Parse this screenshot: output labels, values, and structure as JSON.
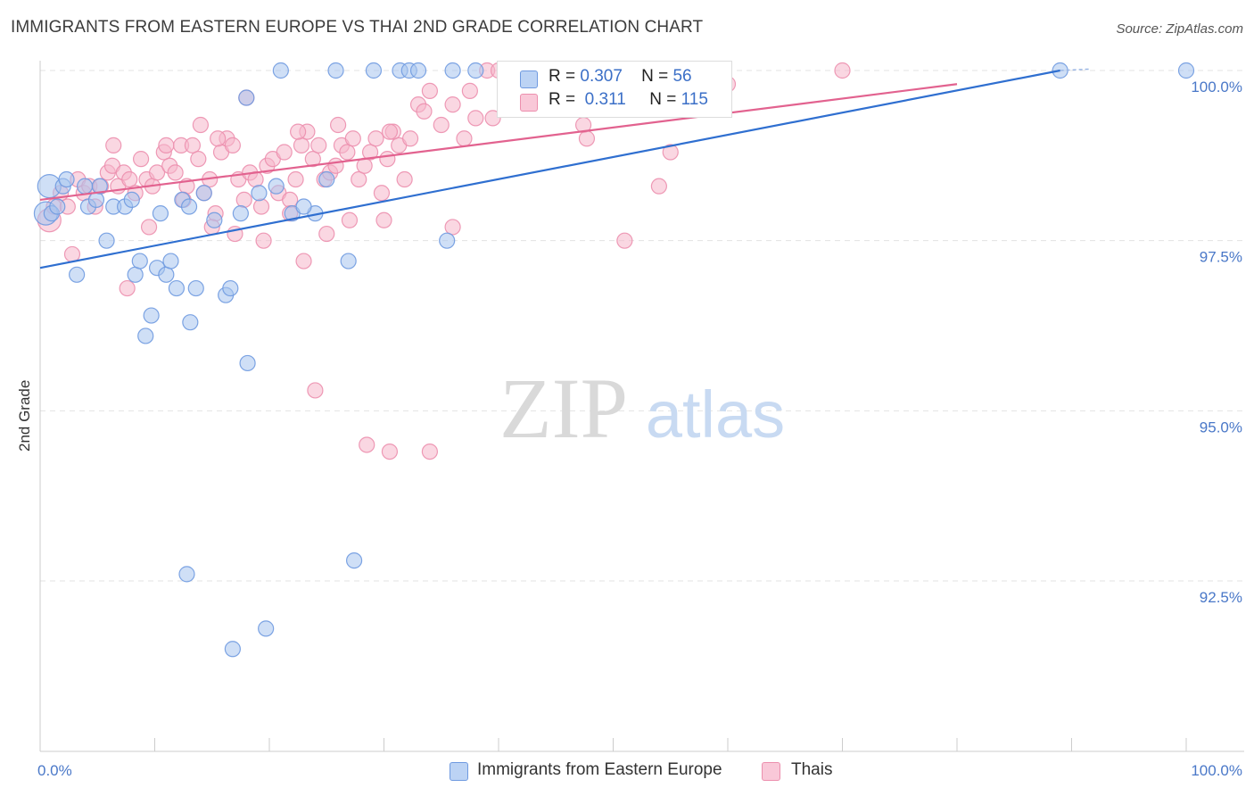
{
  "title": "IMMIGRANTS FROM EASTERN EUROPE VS THAI 2ND GRADE CORRELATION CHART",
  "source": "Source: ZipAtlas.com",
  "watermark": {
    "zip": "ZIP",
    "atlas": "atlas"
  },
  "legend_top": [
    {
      "r_label": "R =",
      "r_value": "0.307",
      "n_label": "N =",
      "n_value": "56"
    },
    {
      "r_label": "R =",
      "r_value": "0.311",
      "n_label": "N =",
      "n_value": "115"
    }
  ],
  "legend_bottom": [
    {
      "label": "Immigrants from Eastern Europe"
    },
    {
      "label": "Thais"
    }
  ],
  "colors": {
    "blue_fill": "#a8c4ee",
    "blue_stroke": "#6f9ae0",
    "blue_line": "#2f6fd0",
    "pink_fill": "#f6b6cb",
    "pink_stroke": "#ec8fae",
    "pink_line": "#e2628f",
    "tick_text": "#4a78c8",
    "grid": "#e3e3e3"
  },
  "chart_data": {
    "type": "scatter",
    "title": "IMMIGRANTS FROM EASTERN EUROPE VS THAI 2ND GRADE CORRELATION CHART",
    "xlabel": "",
    "ylabel": "2nd Grade",
    "xlim": [
      0,
      100
    ],
    "ylim": [
      90.2,
      100.2
    ],
    "x_tick_labels": [
      "0.0%",
      "100.0%"
    ],
    "y_ticks": [
      92.5,
      95.0,
      97.5,
      100.0
    ],
    "y_tick_labels": [
      "92.5%",
      "95.0%",
      "97.5%",
      "100.0%"
    ],
    "grid": true,
    "legend_position": "top-center",
    "series": [
      {
        "name": "Immigrants from Eastern Europe",
        "r": 0.307,
        "n": 56,
        "trend": {
          "x": [
            0,
            89
          ],
          "y": [
            97.1,
            100.0
          ]
        },
        "points": [
          {
            "x": 0.5,
            "y": 97.9,
            "big": true
          },
          {
            "x": 0.8,
            "y": 98.3,
            "big": true
          },
          {
            "x": 1.0,
            "y": 97.9
          },
          {
            "x": 1.5,
            "y": 98.0
          },
          {
            "x": 2.0,
            "y": 98.3
          },
          {
            "x": 2.3,
            "y": 98.4
          },
          {
            "x": 3.2,
            "y": 97.0
          },
          {
            "x": 3.9,
            "y": 98.3
          },
          {
            "x": 4.2,
            "y": 98.0
          },
          {
            "x": 4.9,
            "y": 98.1
          },
          {
            "x": 5.2,
            "y": 98.3
          },
          {
            "x": 5.8,
            "y": 97.5
          },
          {
            "x": 6.4,
            "y": 98.0
          },
          {
            "x": 7.4,
            "y": 98.0
          },
          {
            "x": 8.0,
            "y": 98.1
          },
          {
            "x": 8.3,
            "y": 97.0
          },
          {
            "x": 8.7,
            "y": 97.2
          },
          {
            "x": 9.2,
            "y": 96.1
          },
          {
            "x": 9.7,
            "y": 96.4
          },
          {
            "x": 10.2,
            "y": 97.1
          },
          {
            "x": 11.0,
            "y": 97.0
          },
          {
            "x": 11.4,
            "y": 97.2
          },
          {
            "x": 11.9,
            "y": 96.8
          },
          {
            "x": 12.4,
            "y": 98.1
          },
          {
            "x": 13.1,
            "y": 96.3
          },
          {
            "x": 13.6,
            "y": 96.8
          },
          {
            "x": 14.3,
            "y": 98.2
          },
          {
            "x": 15.2,
            "y": 97.8
          },
          {
            "x": 16.2,
            "y": 96.7
          },
          {
            "x": 16.6,
            "y": 96.8
          },
          {
            "x": 18.1,
            "y": 95.7
          },
          {
            "x": 19.1,
            "y": 98.2
          },
          {
            "x": 20.6,
            "y": 98.3
          },
          {
            "x": 22.0,
            "y": 97.9
          },
          {
            "x": 24.0,
            "y": 97.9
          },
          {
            "x": 25.0,
            "y": 98.4
          },
          {
            "x": 26.9,
            "y": 97.2
          },
          {
            "x": 29.1,
            "y": 100.0
          },
          {
            "x": 31.4,
            "y": 100.0
          },
          {
            "x": 32.2,
            "y": 100.0
          },
          {
            "x": 33.0,
            "y": 100.0
          },
          {
            "x": 36.0,
            "y": 100.0
          },
          {
            "x": 38.0,
            "y": 100.0
          },
          {
            "x": 35.5,
            "y": 97.5
          },
          {
            "x": 23.0,
            "y": 98.0
          },
          {
            "x": 17.5,
            "y": 97.9
          },
          {
            "x": 13.0,
            "y": 98.0
          },
          {
            "x": 10.5,
            "y": 97.9
          },
          {
            "x": 18.0,
            "y": 99.6
          },
          {
            "x": 21.0,
            "y": 100.0
          },
          {
            "x": 25.8,
            "y": 100.0
          },
          {
            "x": 12.8,
            "y": 92.6
          },
          {
            "x": 27.4,
            "y": 92.8
          },
          {
            "x": 19.7,
            "y": 91.8
          },
          {
            "x": 16.8,
            "y": 91.5
          },
          {
            "x": 89.0,
            "y": 100.0
          },
          {
            "x": 100.0,
            "y": 100.0
          }
        ]
      },
      {
        "name": "Thais",
        "r": 0.311,
        "n": 115,
        "trend": {
          "x": [
            0,
            80
          ],
          "y": [
            98.1,
            99.8
          ]
        },
        "points": [
          {
            "x": 0.8,
            "y": 97.8,
            "big": true
          },
          {
            "x": 1.2,
            "y": 98.0
          },
          {
            "x": 1.8,
            "y": 98.2
          },
          {
            "x": 2.4,
            "y": 98.0
          },
          {
            "x": 2.8,
            "y": 97.3
          },
          {
            "x": 3.3,
            "y": 98.4
          },
          {
            "x": 3.8,
            "y": 98.2
          },
          {
            "x": 4.3,
            "y": 98.3
          },
          {
            "x": 4.8,
            "y": 98.0
          },
          {
            "x": 5.3,
            "y": 98.3
          },
          {
            "x": 5.9,
            "y": 98.5
          },
          {
            "x": 6.3,
            "y": 98.6
          },
          {
            "x": 6.8,
            "y": 98.3
          },
          {
            "x": 7.3,
            "y": 98.5
          },
          {
            "x": 7.8,
            "y": 98.4
          },
          {
            "x": 8.3,
            "y": 98.2
          },
          {
            "x": 8.8,
            "y": 98.7
          },
          {
            "x": 9.3,
            "y": 98.4
          },
          {
            "x": 9.8,
            "y": 98.3
          },
          {
            "x": 10.2,
            "y": 98.5
          },
          {
            "x": 10.8,
            "y": 98.8
          },
          {
            "x": 11.3,
            "y": 98.6
          },
          {
            "x": 11.8,
            "y": 98.5
          },
          {
            "x": 12.3,
            "y": 98.9
          },
          {
            "x": 12.8,
            "y": 98.3
          },
          {
            "x": 13.3,
            "y": 98.9
          },
          {
            "x": 13.8,
            "y": 98.7
          },
          {
            "x": 14.3,
            "y": 98.2
          },
          {
            "x": 14.8,
            "y": 98.4
          },
          {
            "x": 15.3,
            "y": 97.9
          },
          {
            "x": 15.8,
            "y": 98.8
          },
          {
            "x": 16.3,
            "y": 99.0
          },
          {
            "x": 16.8,
            "y": 98.9
          },
          {
            "x": 17.3,
            "y": 98.4
          },
          {
            "x": 17.8,
            "y": 98.1
          },
          {
            "x": 18.3,
            "y": 98.5
          },
          {
            "x": 18.8,
            "y": 98.4
          },
          {
            "x": 19.3,
            "y": 98.0
          },
          {
            "x": 19.8,
            "y": 98.6
          },
          {
            "x": 20.3,
            "y": 98.7
          },
          {
            "x": 20.8,
            "y": 98.2
          },
          {
            "x": 21.3,
            "y": 98.8
          },
          {
            "x": 21.8,
            "y": 98.1
          },
          {
            "x": 22.3,
            "y": 98.4
          },
          {
            "x": 22.8,
            "y": 98.9
          },
          {
            "x": 23.3,
            "y": 99.1
          },
          {
            "x": 23.8,
            "y": 98.7
          },
          {
            "x": 24.3,
            "y": 98.9
          },
          {
            "x": 24.8,
            "y": 98.4
          },
          {
            "x": 25.3,
            "y": 98.5
          },
          {
            "x": 25.8,
            "y": 98.6
          },
          {
            "x": 26.3,
            "y": 98.9
          },
          {
            "x": 26.8,
            "y": 98.8
          },
          {
            "x": 27.3,
            "y": 99.0
          },
          {
            "x": 27.8,
            "y": 98.4
          },
          {
            "x": 28.3,
            "y": 98.6
          },
          {
            "x": 28.8,
            "y": 98.8
          },
          {
            "x": 29.3,
            "y": 99.0
          },
          {
            "x": 29.8,
            "y": 98.2
          },
          {
            "x": 30.3,
            "y": 98.7
          },
          {
            "x": 30.8,
            "y": 99.1
          },
          {
            "x": 31.3,
            "y": 98.9
          },
          {
            "x": 31.8,
            "y": 98.4
          },
          {
            "x": 32.3,
            "y": 99.0
          },
          {
            "x": 33.0,
            "y": 99.5
          },
          {
            "x": 34.0,
            "y": 99.7
          },
          {
            "x": 35.0,
            "y": 99.2
          },
          {
            "x": 36.0,
            "y": 99.5
          },
          {
            "x": 37.0,
            "y": 99.0
          },
          {
            "x": 38.0,
            "y": 99.3
          },
          {
            "x": 39.0,
            "y": 100.0
          },
          {
            "x": 40.0,
            "y": 100.0
          },
          {
            "x": 41.0,
            "y": 100.0
          },
          {
            "x": 42.0,
            "y": 99.6
          },
          {
            "x": 43.0,
            "y": 100.0
          },
          {
            "x": 45.0,
            "y": 100.0
          },
          {
            "x": 47.0,
            "y": 100.0
          },
          {
            "x": 49.0,
            "y": 100.0
          },
          {
            "x": 52.0,
            "y": 99.5
          },
          {
            "x": 55.0,
            "y": 98.8
          },
          {
            "x": 58.0,
            "y": 100.0
          },
          {
            "x": 60.0,
            "y": 99.8
          },
          {
            "x": 47.4,
            "y": 99.2
          },
          {
            "x": 47.7,
            "y": 99.0
          },
          {
            "x": 51.0,
            "y": 97.5
          },
          {
            "x": 54.0,
            "y": 98.3
          },
          {
            "x": 70.0,
            "y": 100.0
          },
          {
            "x": 24.0,
            "y": 95.3
          },
          {
            "x": 28.5,
            "y": 94.5
          },
          {
            "x": 30.5,
            "y": 94.4
          },
          {
            "x": 34.0,
            "y": 94.4
          },
          {
            "x": 6.4,
            "y": 98.9
          },
          {
            "x": 7.6,
            "y": 96.8
          },
          {
            "x": 9.5,
            "y": 97.7
          },
          {
            "x": 12.5,
            "y": 98.1
          },
          {
            "x": 15.0,
            "y": 97.7
          },
          {
            "x": 17.0,
            "y": 97.6
          },
          {
            "x": 19.5,
            "y": 97.5
          },
          {
            "x": 21.8,
            "y": 97.9
          },
          {
            "x": 23.0,
            "y": 97.2
          },
          {
            "x": 25.0,
            "y": 97.6
          },
          {
            "x": 27.0,
            "y": 97.8
          },
          {
            "x": 30.0,
            "y": 97.8
          },
          {
            "x": 36.0,
            "y": 97.7
          },
          {
            "x": 18.0,
            "y": 99.6
          },
          {
            "x": 22.5,
            "y": 99.1
          },
          {
            "x": 26.0,
            "y": 99.2
          },
          {
            "x": 30.5,
            "y": 99.1
          },
          {
            "x": 33.5,
            "y": 99.4
          },
          {
            "x": 37.5,
            "y": 99.7
          },
          {
            "x": 39.5,
            "y": 99.3
          },
          {
            "x": 14.0,
            "y": 99.2
          },
          {
            "x": 15.5,
            "y": 99.0
          },
          {
            "x": 11.0,
            "y": 98.9
          }
        ]
      }
    ]
  }
}
